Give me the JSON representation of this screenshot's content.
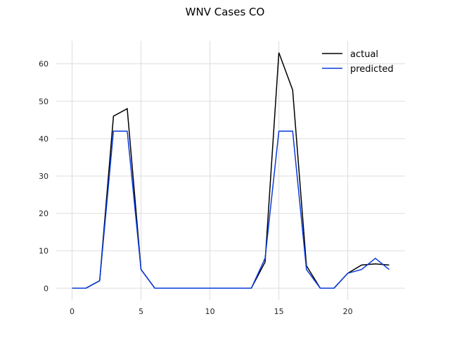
{
  "chart_data": {
    "type": "line",
    "title": "WNV Cases CO",
    "xlabel": "",
    "ylabel": "",
    "xlim": [
      -1.15,
      24.15
    ],
    "ylim": [
      -3.15,
      66.15
    ],
    "xticks": [
      0,
      5,
      10,
      15,
      20
    ],
    "yticks": [
      0,
      10,
      20,
      30,
      40,
      50,
      60
    ],
    "grid": true,
    "legend_position": "top-right",
    "x": [
      0,
      1,
      2,
      3,
      4,
      5,
      6,
      7,
      8,
      9,
      10,
      11,
      12,
      13,
      14,
      15,
      16,
      17,
      18,
      19,
      20,
      21,
      22,
      23
    ],
    "series": [
      {
        "name": "actual",
        "color": "#000000",
        "values": [
          0,
          0,
          2,
          46,
          48,
          5,
          0,
          0,
          0,
          0,
          0,
          0,
          0,
          0,
          7,
          63,
          53,
          6,
          0,
          0,
          4,
          6.2,
          6.5,
          6.2
        ]
      },
      {
        "name": "predicted",
        "color": "#0a3bdb",
        "values": [
          0,
          0,
          2,
          42,
          42,
          5,
          0,
          0,
          0,
          0,
          0,
          0,
          0,
          0,
          8,
          42,
          42,
          5,
          0,
          0,
          4,
          5,
          8,
          5
        ]
      }
    ]
  }
}
